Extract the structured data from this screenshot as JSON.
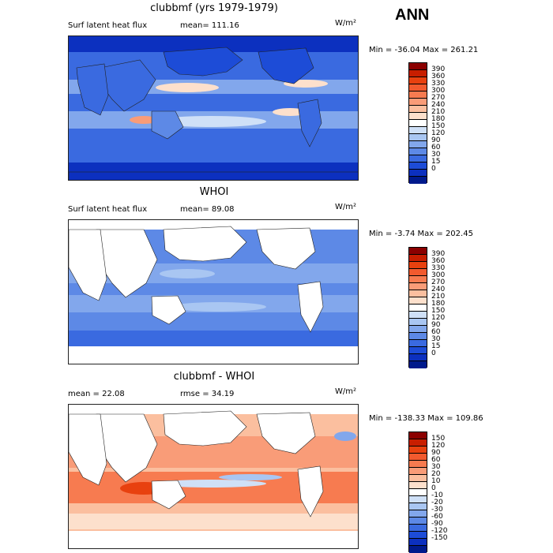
{
  "season": "ANN",
  "panels": [
    {
      "title": "clubbmf (yrs 1979-1979)",
      "left_label": "Surf latent heat flux",
      "right_label": "mean= 111.16",
      "units": "W/m²",
      "minmax": "Min = -36.04 Max = 261.21",
      "colorbar": {
        "colors": [
          "#8b0000",
          "#c81e00",
          "#e8410f",
          "#f25a2e",
          "#f77b50",
          "#f99c78",
          "#fbbf9f",
          "#fde0cc",
          "#ffffff",
          "#cfe0f7",
          "#a9c6f2",
          "#82a7ec",
          "#5d89e6",
          "#3a6ae0",
          "#1d4cd7",
          "#0c30bf",
          "#001a8c"
        ],
        "labels": [
          "390",
          "360",
          "330",
          "300",
          "270",
          "240",
          "210",
          "180",
          "150",
          "120",
          "90",
          "60",
          "30",
          "15",
          "0"
        ]
      }
    },
    {
      "title": "WHOI",
      "left_label": "Surf latent heat flux",
      "right_label": "mean=  89.08",
      "units": "W/m²",
      "minmax": "Min =  -3.74 Max = 202.45",
      "colorbar": {
        "colors": [
          "#8b0000",
          "#c81e00",
          "#e8410f",
          "#f25a2e",
          "#f77b50",
          "#f99c78",
          "#fbbf9f",
          "#fde0cc",
          "#ffffff",
          "#cfe0f7",
          "#a9c6f2",
          "#82a7ec",
          "#5d89e6",
          "#3a6ae0",
          "#1d4cd7",
          "#0c30bf",
          "#001a8c"
        ],
        "labels": [
          "390",
          "360",
          "330",
          "300",
          "270",
          "240",
          "210",
          "180",
          "150",
          "120",
          "90",
          "60",
          "30",
          "15",
          "0"
        ]
      }
    },
    {
      "title": "clubbmf - WHOI",
      "left_label": "mean =  22.08",
      "right_label": "rmse =  34.19",
      "units": "W/m²",
      "minmax": "Min = -138.33 Max = 109.86",
      "colorbar": {
        "colors": [
          "#8b0000",
          "#c81e00",
          "#e8410f",
          "#f25a2e",
          "#f77b50",
          "#f99c78",
          "#fbbf9f",
          "#fde0cc",
          "#ffffff",
          "#cfe0f7",
          "#a9c6f2",
          "#82a7ec",
          "#5d89e6",
          "#3a6ae0",
          "#1d4cd7",
          "#0c30bf",
          "#001a8c"
        ],
        "labels": [
          "150",
          "120",
          "90",
          "60",
          "30",
          "20",
          "10",
          "0",
          "-10",
          "-20",
          "-30",
          "-60",
          "-90",
          "-120",
          "-150"
        ]
      }
    }
  ]
}
